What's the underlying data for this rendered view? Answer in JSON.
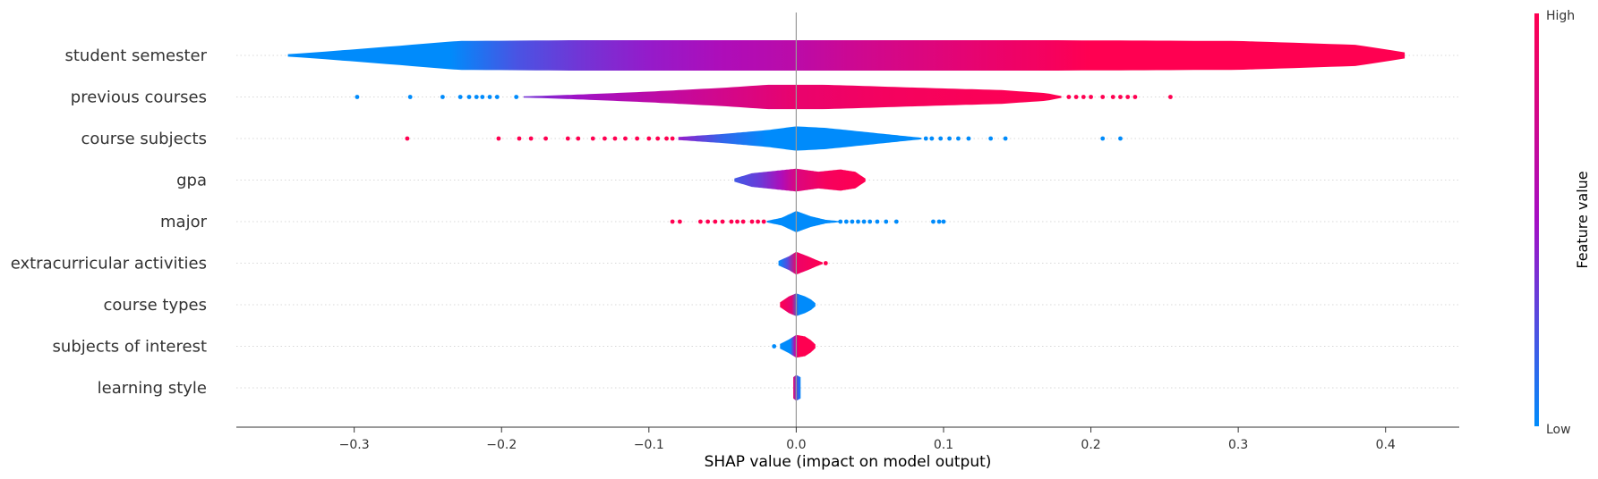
{
  "chart_data": {
    "type": "violin",
    "xlabel": "SHAP value (impact on model output)",
    "xlim": [
      -0.38,
      0.45
    ],
    "xticks": [
      -0.3,
      -0.2,
      -0.1,
      0.0,
      0.1,
      0.2,
      0.3,
      0.4
    ],
    "xtick_labels": [
      "−0.3",
      "−0.2",
      "−0.1",
      "0.0",
      "0.1",
      "0.2",
      "0.3",
      "0.4"
    ],
    "colorbar": {
      "title": "Feature value",
      "high_label": "High",
      "low_label": "Low",
      "low_color": "#008bfb",
      "mid_color": "#a50ec4",
      "high_color": "#ff0051"
    },
    "grid": "horizontal dotted",
    "features": [
      {
        "name": "student semester",
        "min": -0.345,
        "max": 0.413,
        "density": [
          [
            -0.345,
            0.08
          ],
          [
            -0.32,
            0.25
          ],
          [
            -0.28,
            0.55
          ],
          [
            -0.23,
            0.95
          ],
          [
            -0.15,
            1.0
          ],
          [
            0.0,
            1.0
          ],
          [
            0.17,
            1.0
          ],
          [
            0.3,
            0.95
          ],
          [
            0.38,
            0.7
          ],
          [
            0.413,
            0.2
          ]
        ],
        "colors": [
          [
            -0.345,
            0.0
          ],
          [
            -0.235,
            0.0
          ],
          [
            -0.19,
            0.22
          ],
          [
            -0.145,
            0.35
          ],
          [
            -0.1,
            0.45
          ],
          [
            -0.05,
            0.55
          ],
          [
            0.0,
            0.62
          ],
          [
            0.04,
            0.72
          ],
          [
            0.085,
            0.8
          ],
          [
            0.13,
            0.88
          ],
          [
            0.175,
            0.95
          ],
          [
            0.2,
            1.0
          ],
          [
            0.413,
            1.0
          ]
        ],
        "dots": []
      },
      {
        "name": "previous courses",
        "min": -0.185,
        "max": 0.18,
        "density": [
          [
            -0.185,
            0.04
          ],
          [
            -0.15,
            0.15
          ],
          [
            -0.1,
            0.35
          ],
          [
            -0.05,
            0.6
          ],
          [
            -0.02,
            0.8
          ],
          [
            0.02,
            0.8
          ],
          [
            0.08,
            0.62
          ],
          [
            0.14,
            0.45
          ],
          [
            0.17,
            0.25
          ],
          [
            0.18,
            0.06
          ]
        ],
        "colors": [
          [
            -0.185,
            0.35
          ],
          [
            -0.15,
            0.48
          ],
          [
            -0.1,
            0.62
          ],
          [
            -0.05,
            0.75
          ],
          [
            0.0,
            0.88
          ],
          [
            0.06,
            0.94
          ],
          [
            0.18,
            1.0
          ]
        ],
        "dots": [
          {
            "x": -0.298,
            "c": 0.0
          },
          {
            "x": -0.262,
            "c": 0.0
          },
          {
            "x": -0.24,
            "c": 0.0
          },
          {
            "x": -0.228,
            "c": 0.0
          },
          {
            "x": -0.222,
            "c": 0.0
          },
          {
            "x": -0.217,
            "c": 0.0
          },
          {
            "x": -0.213,
            "c": 0.0
          },
          {
            "x": -0.208,
            "c": 0.0
          },
          {
            "x": -0.203,
            "c": 0.0
          },
          {
            "x": -0.19,
            "c": 0.0
          },
          {
            "x": 0.185,
            "c": 1.0
          },
          {
            "x": 0.19,
            "c": 1.0
          },
          {
            "x": 0.195,
            "c": 1.0
          },
          {
            "x": 0.2,
            "c": 1.0
          },
          {
            "x": 0.208,
            "c": 1.0
          },
          {
            "x": 0.215,
            "c": 1.0
          },
          {
            "x": 0.22,
            "c": 1.0
          },
          {
            "x": 0.225,
            "c": 1.0
          },
          {
            "x": 0.23,
            "c": 1.0
          },
          {
            "x": 0.254,
            "c": 1.0
          }
        ]
      },
      {
        "name": "course subjects",
        "min": -0.08,
        "max": 0.085,
        "density": [
          [
            -0.08,
            0.1
          ],
          [
            -0.05,
            0.3
          ],
          [
            -0.02,
            0.55
          ],
          [
            0.0,
            0.8
          ],
          [
            0.02,
            0.7
          ],
          [
            0.05,
            0.4
          ],
          [
            0.07,
            0.2
          ],
          [
            0.085,
            0.05
          ]
        ],
        "colors": [
          [
            -0.08,
            0.45
          ],
          [
            -0.05,
            0.15
          ],
          [
            -0.02,
            0.0
          ],
          [
            0.085,
            0.0
          ]
        ],
        "dots": [
          {
            "x": -0.264,
            "c": 1.0
          },
          {
            "x": -0.202,
            "c": 1.0
          },
          {
            "x": -0.188,
            "c": 1.0
          },
          {
            "x": -0.18,
            "c": 1.0
          },
          {
            "x": -0.17,
            "c": 1.0
          },
          {
            "x": -0.155,
            "c": 1.0
          },
          {
            "x": -0.148,
            "c": 1.0
          },
          {
            "x": -0.138,
            "c": 1.0
          },
          {
            "x": -0.13,
            "c": 1.0
          },
          {
            "x": -0.123,
            "c": 1.0
          },
          {
            "x": -0.116,
            "c": 1.0
          },
          {
            "x": -0.108,
            "c": 1.0
          },
          {
            "x": -0.1,
            "c": 1.0
          },
          {
            "x": -0.094,
            "c": 1.0
          },
          {
            "x": -0.088,
            "c": 1.0
          },
          {
            "x": -0.084,
            "c": 1.0
          },
          {
            "x": 0.088,
            "c": 0.0
          },
          {
            "x": 0.092,
            "c": 0.0
          },
          {
            "x": 0.098,
            "c": 0.0
          },
          {
            "x": 0.104,
            "c": 0.0
          },
          {
            "x": 0.11,
            "c": 0.0
          },
          {
            "x": 0.117,
            "c": 0.0
          },
          {
            "x": 0.132,
            "c": 0.0
          },
          {
            "x": 0.142,
            "c": 0.0
          },
          {
            "x": 0.208,
            "c": 0.0
          },
          {
            "x": 0.22,
            "c": 0.0
          }
        ]
      },
      {
        "name": "gpa",
        "min": -0.042,
        "max": 0.047,
        "density": [
          [
            -0.042,
            0.1
          ],
          [
            -0.03,
            0.45
          ],
          [
            -0.015,
            0.6
          ],
          [
            0.0,
            0.75
          ],
          [
            0.015,
            0.55
          ],
          [
            0.03,
            0.7
          ],
          [
            0.04,
            0.55
          ],
          [
            0.047,
            0.1
          ]
        ],
        "colors": [
          [
            -0.042,
            0.2
          ],
          [
            -0.025,
            0.32
          ],
          [
            -0.01,
            0.55
          ],
          [
            0.0,
            0.8
          ],
          [
            0.02,
            0.95
          ],
          [
            0.047,
            1.0
          ]
        ],
        "dots": []
      },
      {
        "name": "major",
        "min": -0.02,
        "max": 0.03,
        "density": [
          [
            -0.02,
            0.05
          ],
          [
            -0.01,
            0.25
          ],
          [
            0.0,
            0.7
          ],
          [
            0.01,
            0.35
          ],
          [
            0.02,
            0.12
          ],
          [
            0.03,
            0.03
          ]
        ],
        "colors": [
          [
            -0.02,
            0.0
          ],
          [
            0.03,
            0.0
          ]
        ],
        "dots": [
          {
            "x": -0.084,
            "c": 1.0
          },
          {
            "x": -0.079,
            "c": 1.0
          },
          {
            "x": -0.065,
            "c": 1.0
          },
          {
            "x": -0.06,
            "c": 1.0
          },
          {
            "x": -0.055,
            "c": 1.0
          },
          {
            "x": -0.05,
            "c": 1.0
          },
          {
            "x": -0.044,
            "c": 1.0
          },
          {
            "x": -0.04,
            "c": 1.0
          },
          {
            "x": -0.036,
            "c": 1.0
          },
          {
            "x": -0.03,
            "c": 1.0
          },
          {
            "x": -0.026,
            "c": 1.0
          },
          {
            "x": -0.022,
            "c": 1.0
          },
          {
            "x": 0.03,
            "c": 0.0
          },
          {
            "x": 0.034,
            "c": 0.0
          },
          {
            "x": 0.038,
            "c": 0.0
          },
          {
            "x": 0.042,
            "c": 0.0
          },
          {
            "x": 0.046,
            "c": 0.0
          },
          {
            "x": 0.05,
            "c": 0.0
          },
          {
            "x": 0.055,
            "c": 0.0
          },
          {
            "x": 0.061,
            "c": 0.0
          },
          {
            "x": 0.068,
            "c": 0.0
          },
          {
            "x": 0.093,
            "c": 0.0
          },
          {
            "x": 0.097,
            "c": 0.0
          },
          {
            "x": 0.1,
            "c": 0.0
          }
        ]
      },
      {
        "name": "extracurricular activities",
        "min": -0.012,
        "max": 0.018,
        "density": [
          [
            -0.012,
            0.15
          ],
          [
            -0.005,
            0.45
          ],
          [
            0.0,
            0.75
          ],
          [
            0.008,
            0.45
          ],
          [
            0.014,
            0.2
          ],
          [
            0.018,
            0.05
          ]
        ],
        "colors": [
          [
            -0.012,
            0.0
          ],
          [
            -0.006,
            0.25
          ],
          [
            0.0,
            0.9
          ],
          [
            0.018,
            1.0
          ]
        ],
        "dots": [
          {
            "x": 0.02,
            "c": 1.0
          }
        ]
      },
      {
        "name": "course types",
        "min": -0.011,
        "max": 0.013,
        "density": [
          [
            -0.011,
            0.15
          ],
          [
            -0.005,
            0.55
          ],
          [
            0.0,
            0.75
          ],
          [
            0.006,
            0.55
          ],
          [
            0.01,
            0.35
          ],
          [
            0.013,
            0.1
          ]
        ],
        "colors": [
          [
            -0.011,
            1.0
          ],
          [
            -0.003,
            0.85
          ],
          [
            0.002,
            0.0
          ],
          [
            0.013,
            0.0
          ]
        ],
        "dots": []
      },
      {
        "name": "subjects of interest",
        "min": -0.011,
        "max": 0.013,
        "density": [
          [
            -0.011,
            0.15
          ],
          [
            -0.005,
            0.45
          ],
          [
            0.0,
            0.75
          ],
          [
            0.006,
            0.65
          ],
          [
            0.01,
            0.4
          ],
          [
            0.013,
            0.12
          ]
        ],
        "colors": [
          [
            -0.011,
            0.0
          ],
          [
            -0.004,
            0.0
          ],
          [
            -0.001,
            0.6
          ],
          [
            0.002,
            1.0
          ],
          [
            0.013,
            1.0
          ]
        ],
        "dots": [
          {
            "x": -0.015,
            "c": 0.0
          }
        ]
      },
      {
        "name": "learning style",
        "min": -0.002,
        "max": 0.003,
        "density": [
          [
            -0.002,
            0.7
          ],
          [
            0.0,
            0.85
          ],
          [
            0.003,
            0.7
          ]
        ],
        "colors": [
          [
            -0.002,
            0.9
          ],
          [
            0.0,
            0.3
          ],
          [
            0.003,
            0.0
          ]
        ],
        "dots": []
      }
    ]
  }
}
